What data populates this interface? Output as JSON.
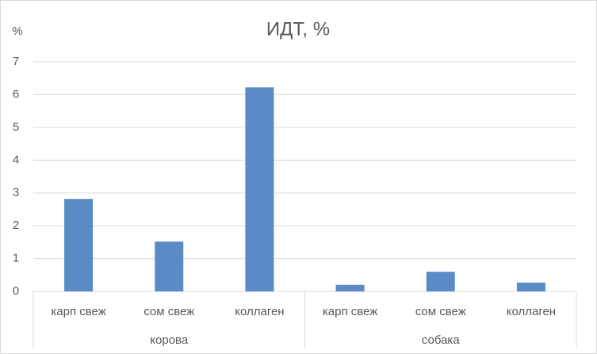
{
  "chart_data": {
    "type": "bar",
    "title": "ИДТ, %",
    "y_label": "%",
    "groups": [
      {
        "name": "корова",
        "categories": [
          "карп свеж",
          "сом свеж",
          "коллаген"
        ],
        "values": [
          2.82,
          1.52,
          6.22
        ]
      },
      {
        "name": "собака",
        "categories": [
          "карп свеж",
          "сом свеж",
          "коллаген"
        ],
        "values": [
          0.2,
          0.6,
          0.27
        ]
      }
    ],
    "color": "#5b8bc6",
    "ylim": [
      0,
      7
    ],
    "yticks": [
      0,
      1,
      2,
      3,
      4,
      5,
      6,
      7
    ],
    "grid": true
  }
}
